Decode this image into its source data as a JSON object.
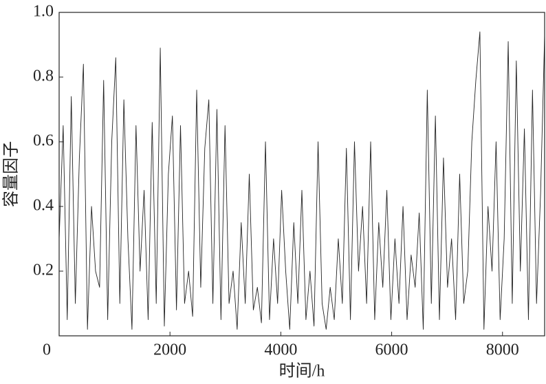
{
  "chart_data": {
    "type": "line",
    "x_label": "时间/h",
    "y_label": "容量因子",
    "xlim": [
      0,
      8760
    ],
    "ylim": [
      0,
      1
    ],
    "xticks": [
      0,
      2000,
      4000,
      6000,
      8000
    ],
    "yticks": [
      0.2,
      0.4,
      0.6,
      0.8,
      {
        "value": 1,
        "label": "1.0"
      }
    ],
    "x": [
      0,
      73,
      146,
      219,
      292,
      365,
      438,
      511,
      584,
      657,
      730,
      803,
      876,
      949,
      1022,
      1095,
      1168,
      1241,
      1314,
      1387,
      1460,
      1533,
      1606,
      1679,
      1752,
      1825,
      1898,
      1971,
      2044,
      2117,
      2190,
      2263,
      2336,
      2409,
      2482,
      2555,
      2628,
      2701,
      2774,
      2847,
      2920,
      2993,
      3066,
      3139,
      3212,
      3285,
      3358,
      3431,
      3504,
      3577,
      3650,
      3723,
      3796,
      3869,
      3942,
      4015,
      4088,
      4161,
      4234,
      4307,
      4380,
      4453,
      4526,
      4599,
      4672,
      4745,
      4818,
      4891,
      4964,
      5037,
      5110,
      5183,
      5256,
      5329,
      5402,
      5475,
      5548,
      5621,
      5694,
      5767,
      5840,
      5913,
      5986,
      6059,
      6132,
      6205,
      6278,
      6351,
      6424,
      6497,
      6570,
      6643,
      6716,
      6789,
      6862,
      6935,
      7008,
      7081,
      7154,
      7227,
      7300,
      7373,
      7446,
      7519,
      7592,
      7665,
      7738,
      7811,
      7884,
      7957,
      8030,
      8103,
      8176,
      8249,
      8322,
      8395,
      8468,
      8541,
      8614,
      8687,
      8760
    ],
    "series": [
      {
        "color": "#222222",
        "values": [
          0.3,
          0.65,
          0.05,
          0.74,
          0.1,
          0.55,
          0.84,
          0.02,
          0.4,
          0.2,
          0.15,
          0.79,
          0.05,
          0.6,
          0.86,
          0.1,
          0.73,
          0.3,
          0.02,
          0.65,
          0.2,
          0.45,
          0.05,
          0.66,
          0.1,
          0.89,
          0.03,
          0.5,
          0.68,
          0.08,
          0.65,
          0.1,
          0.2,
          0.06,
          0.76,
          0.15,
          0.58,
          0.73,
          0.1,
          0.7,
          0.05,
          0.65,
          0.1,
          0.2,
          0.02,
          0.35,
          0.1,
          0.5,
          0.08,
          0.15,
          0.04,
          0.6,
          0.05,
          0.3,
          0.1,
          0.45,
          0.2,
          0.02,
          0.35,
          0.1,
          0.45,
          0.05,
          0.2,
          0.03,
          0.6,
          0.1,
          0.02,
          0.15,
          0.05,
          0.3,
          0.1,
          0.58,
          0.05,
          0.6,
          0.2,
          0.4,
          0.1,
          0.6,
          0.05,
          0.35,
          0.15,
          0.45,
          0.05,
          0.3,
          0.1,
          0.4,
          0.05,
          0.25,
          0.15,
          0.38,
          0.02,
          0.76,
          0.1,
          0.68,
          0.05,
          0.55,
          0.15,
          0.3,
          0.05,
          0.5,
          0.1,
          0.2,
          0.6,
          0.79,
          0.94,
          0.02,
          0.4,
          0.2,
          0.6,
          0.05,
          0.3,
          0.91,
          0.1,
          0.85,
          0.2,
          0.64,
          0.05,
          0.76,
          0.1,
          0.44,
          0.93
        ]
      }
    ]
  }
}
